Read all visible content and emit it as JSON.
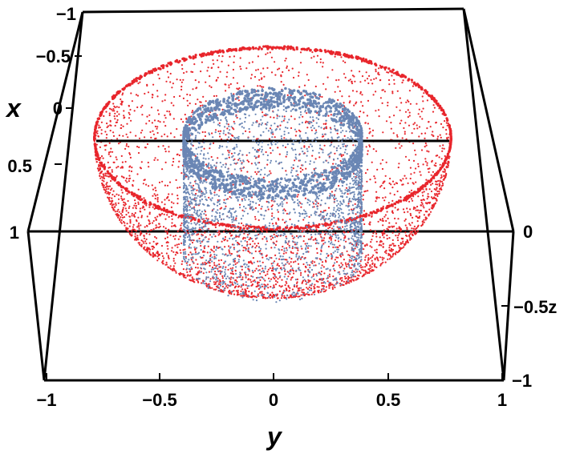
{
  "chart_data": {
    "type": "scatter",
    "dimensions": 3,
    "title": "",
    "axes": {
      "x": {
        "label": "x",
        "range": [
          -1,
          1
        ],
        "ticks": [
          -1,
          -0.5,
          0,
          0.5,
          1
        ],
        "tick_labels": [
          "−1",
          "−0.5",
          "0",
          "0.5",
          "1"
        ]
      },
      "y": {
        "label": "y",
        "range": [
          -1,
          1
        ],
        "ticks": [
          -1,
          -0.5,
          0,
          0.5,
          1
        ],
        "tick_labels": [
          "−1",
          "−0.5",
          "0",
          "0.5",
          "1"
        ]
      },
      "z": {
        "label": "z",
        "range": [
          -1,
          0
        ],
        "ticks": [
          0,
          -0.5,
          -1
        ],
        "tick_labels": [
          "0",
          "−0.5z",
          "−1"
        ]
      }
    },
    "grid": false,
    "legend": "none",
    "series": [
      {
        "shape": "lower hemisphere surface",
        "radius": 1,
        "z_range": [
          -1,
          0
        ],
        "color": "#e8262c"
      },
      {
        "shape": "cylinder surface",
        "radius": 0.5,
        "z_range": [
          -0.9,
          0
        ],
        "color": "#6a86b4"
      }
    ]
  }
}
